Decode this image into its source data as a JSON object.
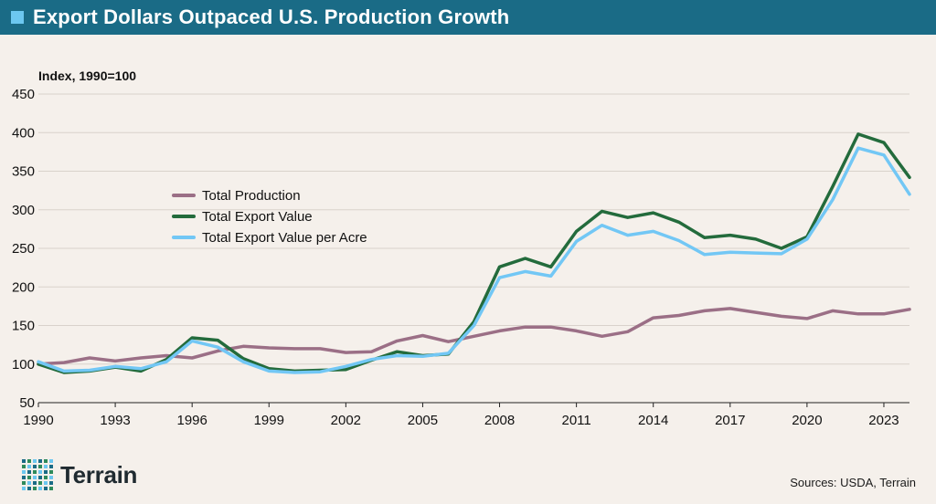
{
  "header": {
    "title": "Export Dollars Outpaced U.S. Production Growth"
  },
  "brand": {
    "name": "Terrain"
  },
  "footer": {
    "sources": "Sources: USDA, Terrain"
  },
  "colors": {
    "header_bg": "#1a6b86",
    "production": "#9b6f86",
    "export_value": "#236b3c",
    "export_per_acre": "#72c7f5"
  },
  "chart_data": {
    "type": "line",
    "title": "Export Dollars Outpaced U.S. Production Growth",
    "ylabel": "Index, 1990=100",
    "xlabel": "",
    "ylim": [
      50,
      450
    ],
    "xlim": [
      1990,
      2024
    ],
    "yticks": [
      50,
      100,
      150,
      200,
      250,
      300,
      350,
      400,
      450
    ],
    "xticks": [
      1990,
      1993,
      1996,
      1999,
      2002,
      2005,
      2008,
      2011,
      2014,
      2017,
      2020,
      2023
    ],
    "grid": true,
    "legend_position": "center-left",
    "x": [
      1990,
      1991,
      1992,
      1993,
      1994,
      1995,
      1996,
      1997,
      1998,
      1999,
      2000,
      2001,
      2002,
      2003,
      2004,
      2005,
      2006,
      2007,
      2008,
      2009,
      2010,
      2011,
      2012,
      2013,
      2014,
      2015,
      2016,
      2017,
      2018,
      2019,
      2020,
      2021,
      2022,
      2023,
      2024
    ],
    "series": [
      {
        "name": "Total Production",
        "color": "#9b6f86",
        "values": [
          100,
          102,
          108,
          104,
          108,
          111,
          108,
          117,
          123,
          121,
          120,
          120,
          115,
          116,
          130,
          137,
          129,
          136,
          143,
          148,
          148,
          143,
          136,
          142,
          160,
          163,
          169,
          172,
          167,
          162,
          159,
          169,
          165,
          165,
          171
        ]
      },
      {
        "name": "Total Export Value",
        "color": "#236b3c",
        "values": [
          100,
          89,
          91,
          96,
          91,
          106,
          134,
          131,
          107,
          94,
          91,
          92,
          93,
          105,
          116,
          111,
          113,
          155,
          226,
          237,
          226,
          272,
          298,
          290,
          296,
          284,
          264,
          267,
          262,
          250,
          265,
          330,
          398,
          387,
          342
        ]
      },
      {
        "name": "Total Export Value per Acre",
        "color": "#72c7f5",
        "values": [
          103,
          91,
          92,
          97,
          94,
          103,
          130,
          122,
          103,
          91,
          89,
          90,
          97,
          106,
          111,
          110,
          114,
          150,
          212,
          220,
          214,
          259,
          280,
          267,
          272,
          260,
          242,
          245,
          244,
          243,
          262,
          313,
          380,
          371,
          320
        ]
      }
    ]
  }
}
